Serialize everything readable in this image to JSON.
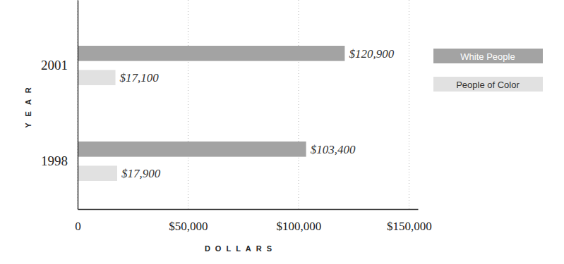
{
  "chart_data": {
    "type": "bar",
    "orientation": "horizontal",
    "categories": [
      "2001",
      "1998"
    ],
    "series": [
      {
        "name": "White People",
        "color": "#a3a3a3",
        "values": [
          120900,
          103400
        ],
        "value_labels": [
          "$120,900",
          "$103,400"
        ]
      },
      {
        "name": "People of Color",
        "color": "#e1e1e1",
        "values": [
          17100,
          17900
        ],
        "value_labels": [
          "$17,100",
          "$17,900"
        ]
      }
    ],
    "xlim": [
      0,
      154000
    ],
    "xticks": [
      0,
      {
        "value": 50000,
        "label": "$50,000"
      },
      {
        "value": 100000,
        "label": "$100,000"
      },
      {
        "value": 150000,
        "label": "$150,000"
      }
    ],
    "xlabel": "DOLLARS",
    "ylabel": "YEAR",
    "grid": true,
    "legend": "upper right",
    "data_labels": true
  }
}
